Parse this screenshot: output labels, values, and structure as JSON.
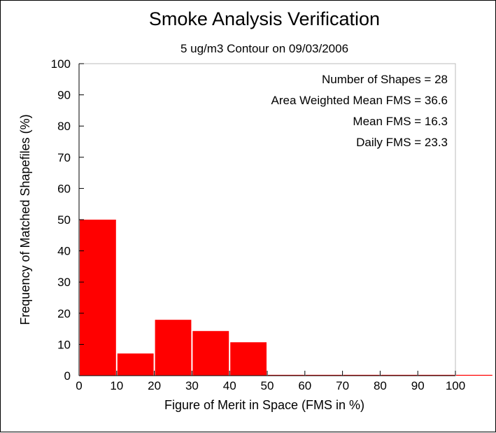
{
  "chart_data": {
    "type": "bar",
    "title": "Smoke Analysis Verification",
    "subtitle": "5 ug/m3 Contour on 09/03/2006",
    "xlabel": "Figure of Merit in Space (FMS in %)",
    "ylabel": "Frequency of Matched Shapefiles (%)",
    "xlim": [
      0,
      110
    ],
    "ylim": [
      0,
      100
    ],
    "xticks": [
      0,
      10,
      20,
      30,
      40,
      50,
      60,
      70,
      80,
      90,
      100
    ],
    "yticks": [
      0,
      10,
      20,
      30,
      40,
      50,
      60,
      70,
      80,
      90,
      100
    ],
    "bin_width": 10,
    "bins": [
      {
        "x_start": 0,
        "x_end": 10,
        "value": 50
      },
      {
        "x_start": 10,
        "x_end": 20,
        "value": 7.1
      },
      {
        "x_start": 20,
        "x_end": 30,
        "value": 17.9
      },
      {
        "x_start": 30,
        "x_end": 40,
        "value": 14.3
      },
      {
        "x_start": 40,
        "x_end": 50,
        "value": 10.7
      },
      {
        "x_start": 50,
        "x_end": 60,
        "value": 0
      },
      {
        "x_start": 60,
        "x_end": 70,
        "value": 0
      },
      {
        "x_start": 70,
        "x_end": 80,
        "value": 0
      },
      {
        "x_start": 80,
        "x_end": 90,
        "value": 0
      },
      {
        "x_start": 90,
        "x_end": 100,
        "value": 0
      },
      {
        "x_start": 100,
        "x_end": 110,
        "value": 0
      }
    ],
    "annotations": [
      "Number of Shapes = 28",
      "Area Weighted Mean FMS = 36.6",
      "Mean FMS = 16.3",
      "Daily FMS = 23.3"
    ],
    "bar_color": "#ff0000",
    "grid": false,
    "legend": "none"
  }
}
